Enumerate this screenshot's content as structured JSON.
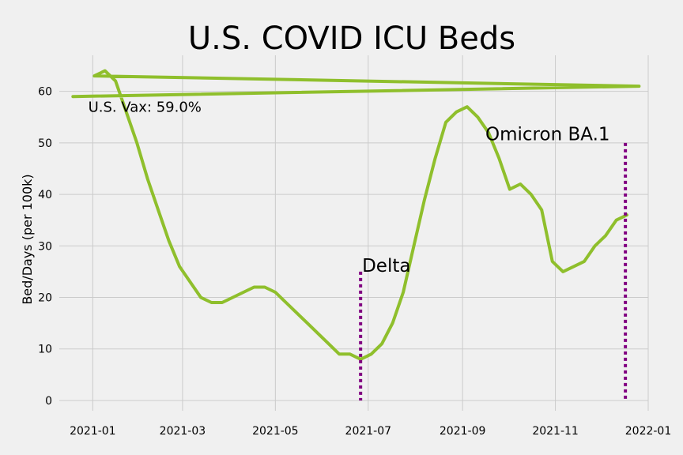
{
  "chart_data": {
    "type": "line",
    "title": "U.S. COVID ICU Beds",
    "xlabel": "",
    "ylabel": "Bed/Days (per 100k)",
    "xlim": [
      "2020-12-10",
      "2022-01-01"
    ],
    "ylim": [
      -2,
      67
    ],
    "x_ticks": [
      "2021-01-01",
      "2021-03-01",
      "2021-05-01",
      "2021-07-01",
      "2021-09-01",
      "2021-11-01",
      "2022-01-01"
    ],
    "x_tick_labels": [
      "2021-01",
      "2021-03",
      "2021-05",
      "2021-07",
      "2021-09",
      "2021-11",
      "2022-01"
    ],
    "y_ticks": [
      0,
      10,
      20,
      30,
      40,
      50,
      60
    ],
    "grid": true,
    "colors": {
      "line": "#8fbf2c",
      "markers": "#800080",
      "background": "#f0f0f0"
    },
    "series": [
      {
        "x": [
          "2020-12-19",
          "2021-12-26",
          "2021-01-02",
          "2021-01-09",
          "2021-01-16",
          "2021-01-23",
          "2021-01-30",
          "2021-02-06",
          "2021-02-13",
          "2021-02-20",
          "2021-02-27",
          "2021-03-06",
          "2021-03-13",
          "2021-03-20",
          "2021-03-27",
          "2021-04-03",
          "2021-04-10",
          "2021-04-17",
          "2021-04-24",
          "2021-05-01",
          "2021-05-08",
          "2021-05-15",
          "2021-05-22",
          "2021-05-29",
          "2021-06-05",
          "2021-06-12",
          "2021-06-19",
          "2021-06-26",
          "2021-07-03",
          "2021-07-10",
          "2021-07-17",
          "2021-07-24",
          "2021-07-31",
          "2021-08-07",
          "2021-08-14",
          "2021-08-21",
          "2021-08-28",
          "2021-09-04",
          "2021-09-11",
          "2021-09-18",
          "2021-09-25",
          "2021-10-02",
          "2021-10-09",
          "2021-10-16",
          "2021-10-23",
          "2021-10-30",
          "2021-11-06",
          "2021-11-13",
          "2021-11-20",
          "2021-11-27",
          "2021-12-04",
          "2021-12-11",
          "2021-12-18"
        ],
        "y": [
          59,
          61,
          63,
          64,
          62,
          56,
          50,
          43,
          37,
          31,
          26,
          23,
          20,
          19,
          19,
          20,
          21,
          22,
          22,
          21,
          19,
          17,
          15,
          13,
          11,
          9,
          9,
          8,
          9,
          11,
          15,
          21,
          30,
          39,
          47,
          54,
          56,
          57,
          55,
          52,
          47,
          41,
          42,
          40,
          37,
          27,
          25,
          26,
          27,
          30,
          32,
          35,
          36
        ]
      }
    ],
    "annotations": [
      {
        "text": "U.S. Vax: 59.0%",
        "x": "2020-12-29",
        "y": 56
      },
      {
        "text": "Delta",
        "x": "2021-06-27",
        "y": 25
      },
      {
        "text": "Omicron BA.1",
        "x": "2021-09-16",
        "y": 50.5
      }
    ],
    "event_lines": [
      {
        "label": "Delta",
        "x": "2021-06-26",
        "y_top": 25
      },
      {
        "label": "Omicron BA.1",
        "x": "2021-12-17",
        "y_top": 50
      }
    ]
  }
}
